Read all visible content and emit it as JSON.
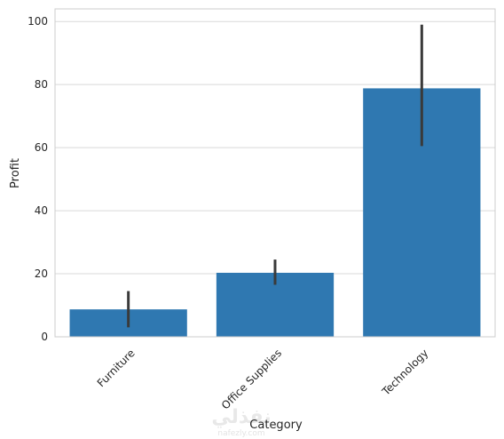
{
  "chart_data": {
    "type": "bar",
    "categories": [
      "Furniture",
      "Office Supplies",
      "Technology"
    ],
    "values": [
      8.7,
      20.3,
      78.8
    ],
    "error_bars": [
      [
        3.0,
        14.5
      ],
      [
        16.5,
        24.5
      ],
      [
        60.5,
        99.0
      ]
    ],
    "xlabel": "Category",
    "ylabel": "Profit",
    "ylim": [
      0,
      104
    ],
    "yticks": [
      0,
      20,
      40,
      60,
      80,
      100
    ],
    "grid": true,
    "bar_color": "#2f78b1",
    "errorbar_color": "#3a3a3a"
  },
  "watermark": {
    "arabic": "نفذلي",
    "latin": "nafezly.com"
  }
}
